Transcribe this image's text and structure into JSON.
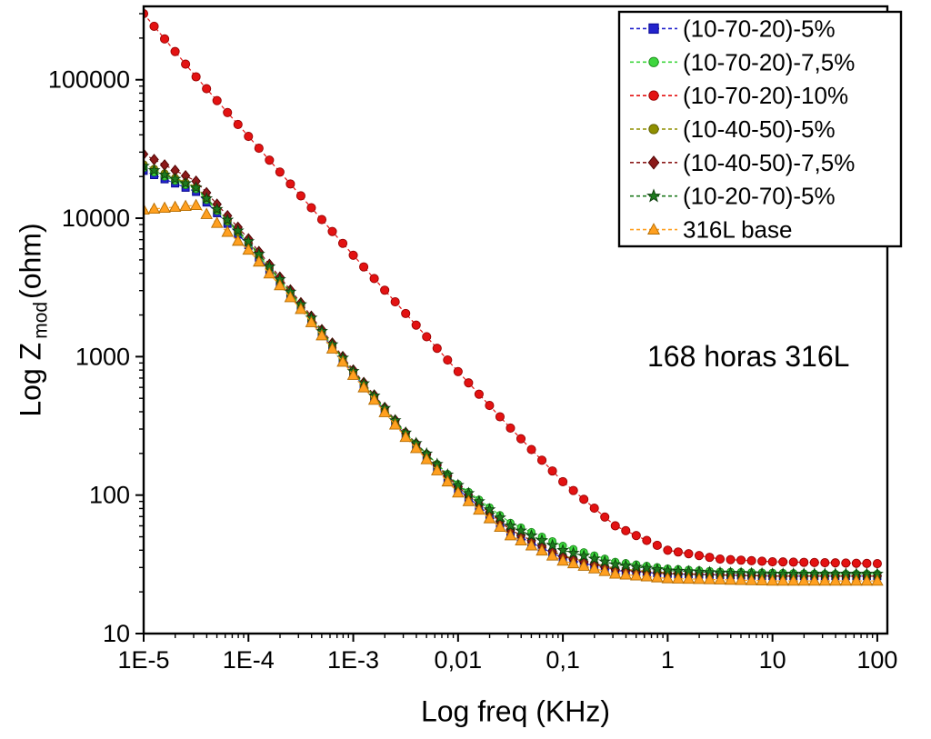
{
  "figure": {
    "annotation": "168 horas 316L",
    "x_axis": {
      "title": "Log freq (KHz)",
      "tick_labels": [
        "1E-5",
        "1E-4",
        "1E-3",
        "0,01",
        "0,1",
        "1",
        "10",
        "100"
      ],
      "tick_logs": [
        -5,
        -4,
        -3,
        -2,
        -1,
        0,
        1,
        2
      ]
    },
    "y_axis": {
      "title_prefix": "Log Z",
      "title_sub": "mod",
      "title_suffix": "(ohm)",
      "tick_labels": [
        "10",
        "100",
        "1000",
        "10000",
        "100000"
      ],
      "tick_logs": [
        1,
        2,
        3,
        4,
        5
      ]
    }
  },
  "chart_data": {
    "type": "line",
    "title": "",
    "xlabel": "Log freq (KHz)",
    "ylabel": "Log Z mod (ohm)",
    "x_scale": "log10",
    "y_scale": "log10",
    "xlim_log": [
      -5,
      2.096
    ],
    "ylim_log": [
      1,
      5.53
    ],
    "grid": false,
    "legend_position": "top-right",
    "x_log10_freq_khz_anchors": [
      -5.0,
      -4.5,
      -4.0,
      -3.5,
      -3.0,
      -2.5,
      -2.0,
      -1.5,
      -1.0,
      -0.5,
      0.0,
      0.5,
      1.0,
      1.5,
      2.0
    ],
    "series": [
      {
        "name": "(10-70-20)-5%",
        "color": "#2323cc",
        "edge": "#00008b",
        "marker": "square",
        "size": 4.0,
        "z_ohm": [
          22000,
          15500,
          6400,
          2250,
          750,
          268,
          110,
          54,
          35,
          28.5,
          27,
          26.5,
          26,
          26,
          26
        ]
      },
      {
        "name": "(10-70-20)-7,5%",
        "color": "#3ed63e",
        "edge": "#1a8a1a",
        "marker": "circle",
        "size": 4.0,
        "z_ohm": [
          23000,
          16200,
          6600,
          2320,
          770,
          278,
          120,
          63,
          43,
          33,
          29.5,
          28,
          27.5,
          27,
          27
        ]
      },
      {
        "name": "(10-70-20)-10%",
        "color": "#e31212",
        "edge": "#990000",
        "marker": "circle",
        "size": 4.6,
        "z_ohm": [
          300000,
          105000,
          39000,
          14500,
          5400,
          2050,
          780,
          305,
          125,
          60,
          40,
          34.5,
          33,
          32.5,
          32
        ]
      },
      {
        "name": "(10-40-50)-5%",
        "color": "#8f8f00",
        "edge": "#5c5c00",
        "marker": "circle",
        "size": 4.0,
        "z_ohm": [
          24500,
          16800,
          6700,
          2350,
          775,
          275,
          114,
          56,
          36.5,
          29.5,
          27.5,
          26.5,
          26,
          26,
          26
        ]
      },
      {
        "name": "(10-40-50)-7,5%",
        "color": "#8b1a1a",
        "edge": "#4d0000",
        "marker": "diamond",
        "size": 4.2,
        "z_ohm": [
          29000,
          18500,
          7100,
          2450,
          800,
          283,
          115,
          56,
          36,
          29,
          27,
          26.5,
          26,
          26,
          26
        ]
      },
      {
        "name": "(10-20-70)-5%",
        "color": "#1e7a1e",
        "edge": "#0c3d0c",
        "marker": "star",
        "size": 4.4,
        "z_ohm": [
          23800,
          16600,
          6800,
          2380,
          785,
          282,
          118,
          60,
          40,
          31.5,
          28.5,
          27.5,
          27,
          27,
          27
        ]
      },
      {
        "name": "316L base",
        "color": "#ffa020",
        "edge": "#b36b00",
        "marker": "triangle",
        "size": 5.0,
        "z_ohm": [
          11500,
          12400,
          5900,
          2200,
          735,
          262,
          104,
          51,
          33.5,
          27,
          25,
          24.5,
          24,
          24,
          24
        ]
      }
    ]
  }
}
